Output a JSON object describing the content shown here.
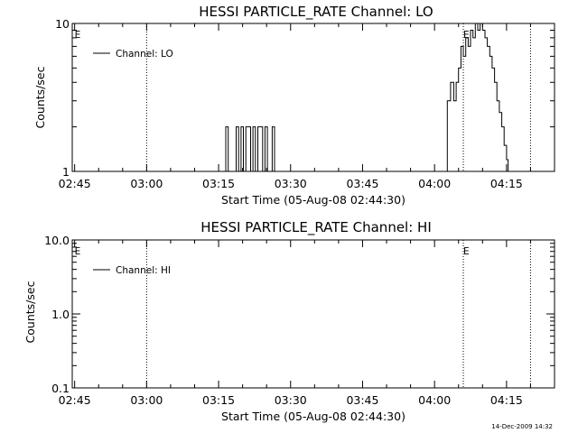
{
  "chart_data": [
    {
      "type": "line",
      "title": "HESSI PARTICLE_RATE Channel: LO",
      "xlabel": "Start Time (05-Aug-08 02:44:30)",
      "ylabel": "Counts/sec",
      "yscale": "log",
      "ylim": [
        1,
        10
      ],
      "xlim": [
        "02:44:30",
        "04:25:00"
      ],
      "xticks": [
        "02:45",
        "03:00",
        "03:15",
        "03:30",
        "03:45",
        "04:00",
        "04:15"
      ],
      "yticks": [
        "1",
        "10"
      ],
      "legend": {
        "label": "Channel: LO",
        "placement": "top-left"
      },
      "event_lines": [
        "03:00",
        "04:06",
        "04:20"
      ],
      "event_markers": [
        {
          "label": "E",
          "time": "02:45"
        },
        {
          "label": "E",
          "time": "04:06"
        }
      ],
      "series": [
        {
          "name": "Channel: LO",
          "x": [
            "03:16:00",
            "03:16:30",
            "03:17:00",
            "03:17:40",
            "03:18:10",
            "03:18:40",
            "03:19:10",
            "03:19:40",
            "03:20:10",
            "03:20:40",
            "03:21:10",
            "03:21:40",
            "03:22:10",
            "03:22:40",
            "03:23:10",
            "03:23:40",
            "03:24:10",
            "03:24:40",
            "03:25:10",
            "03:25:40",
            "03:26:10",
            "03:26:40",
            "03:27:10",
            "03:27:40",
            "04:02:00",
            "04:02:40",
            "04:03:20",
            "04:04:00",
            "04:04:30",
            "04:05:00",
            "04:05:30",
            "04:06:00",
            "04:06:30",
            "04:07:00",
            "04:07:30",
            "04:08:00",
            "04:08:30",
            "04:09:00",
            "04:09:30",
            "04:10:00",
            "04:10:30",
            "04:11:00",
            "04:11:30",
            "04:12:00",
            "04:12:30",
            "04:13:00",
            "04:13:30",
            "04:14:00",
            "04:14:30",
            "04:15:00",
            "04:15:20"
          ],
          "values": [
            1,
            2,
            1,
            1,
            1,
            2,
            1,
            2,
            1,
            2,
            2,
            1,
            2,
            1,
            2,
            2,
            1,
            2,
            1,
            1,
            2,
            1,
            1,
            1,
            1,
            3,
            4,
            3,
            4,
            5,
            7,
            6,
            8,
            7,
            9,
            8,
            10,
            9,
            10,
            9,
            8,
            7,
            6,
            5,
            4,
            3,
            2.5,
            2,
            1.5,
            1.2,
            1
          ]
        }
      ]
    },
    {
      "type": "line",
      "title": "HESSI PARTICLE_RATE Channel: HI",
      "xlabel": "Start Time (05-Aug-08 02:44:30)",
      "ylabel": "Counts/sec",
      "yscale": "log",
      "ylim": [
        0.1,
        10
      ],
      "xlim": [
        "02:44:30",
        "04:25:00"
      ],
      "xticks": [
        "02:45",
        "03:00",
        "03:15",
        "03:30",
        "03:45",
        "04:00",
        "04:15"
      ],
      "yticks": [
        "0.1",
        "1.0",
        "10.0"
      ],
      "legend": {
        "label": "Channel: HI",
        "placement": "top-left"
      },
      "event_lines": [
        "03:00",
        "04:06",
        "04:20"
      ],
      "event_markers": [
        {
          "label": "E",
          "time": "02:45"
        },
        {
          "label": "E",
          "time": "04:06"
        }
      ],
      "series": [
        {
          "name": "Channel: HI",
          "x": [],
          "values": []
        }
      ]
    }
  ],
  "footer": {
    "timestamp": "14-Dec-2009 14:32"
  }
}
